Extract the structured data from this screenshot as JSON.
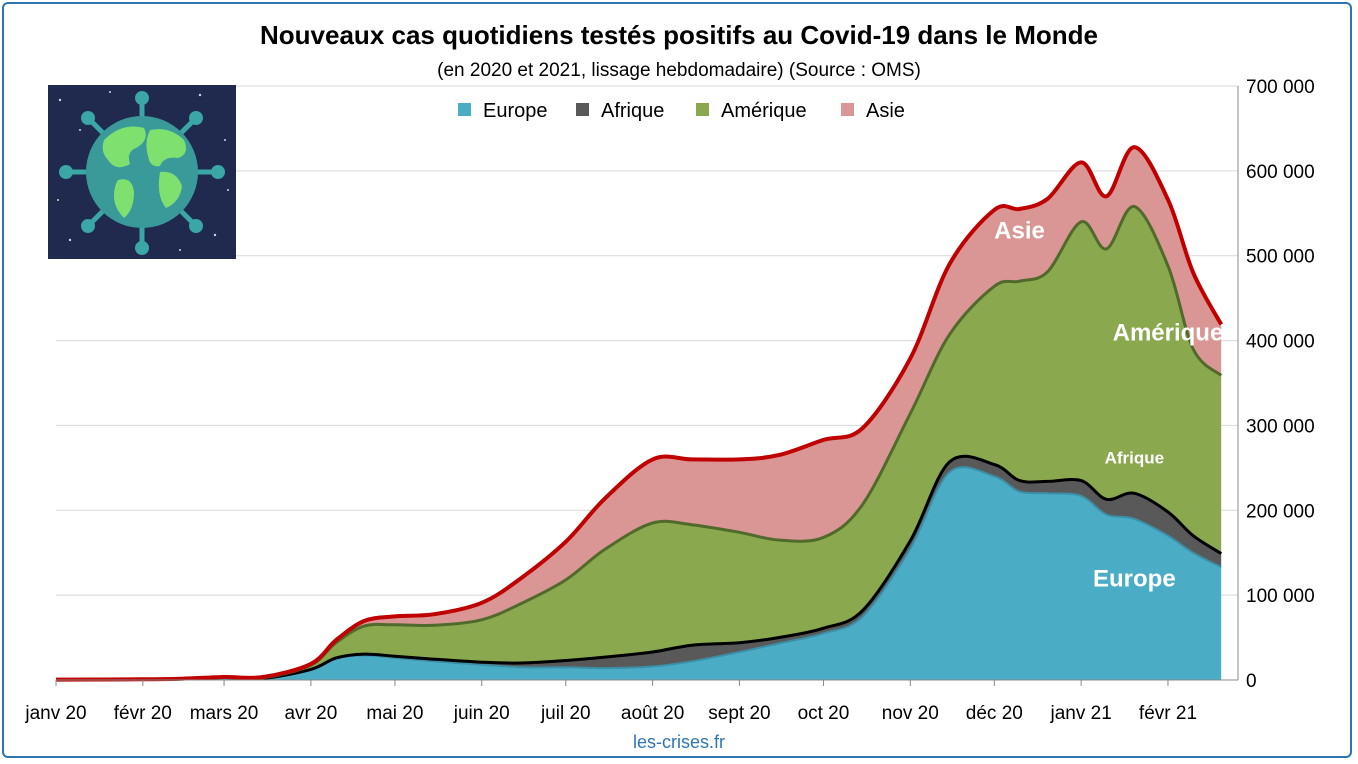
{
  "colors": {
    "europe": "#4bacc6",
    "afrique": "#595959",
    "amerique": "#8aa84e",
    "asie": "#d99694",
    "total_line": "#c00000",
    "frame": "#2e75b6",
    "grid": "#d9d9d9"
  },
  "icon": "earth-virus-icon",
  "source": "les-crises.fr",
  "chart_data": {
    "type": "area",
    "stacked": true,
    "title": "Nouveaux cas quotidiens testés positifs au Covid-19 dans le Monde",
    "subtitle": "(en 2020 et 2021, lissage hebdomadaire) (Source : OMS)",
    "ylim": [
      0,
      700000
    ],
    "y_ticks": [
      0,
      100000,
      200000,
      300000,
      400000,
      500000,
      600000,
      700000
    ],
    "y_tick_labels": [
      "0",
      "100 000",
      "200 000",
      "300 000",
      "400 000",
      "500 000",
      "600 000",
      "700 000"
    ],
    "y_axis_side": "right",
    "x_tick_labels": [
      "janv 20",
      "févr 20",
      "mars 20",
      "avr 20",
      "mai 20",
      "juin 20",
      "juil 20",
      "août 20",
      "sept 20",
      "oct 20",
      "nov 20",
      "déc 20",
      "janv 21",
      "févr 21"
    ],
    "legend_position": "top",
    "grid": true,
    "x": [
      "2020-01-01",
      "2020-02-01",
      "2020-02-15",
      "2020-03-01",
      "2020-03-15",
      "2020-04-01",
      "2020-04-10",
      "2020-04-20",
      "2020-05-01",
      "2020-05-15",
      "2020-06-01",
      "2020-06-15",
      "2020-07-01",
      "2020-07-15",
      "2020-08-01",
      "2020-08-15",
      "2020-09-01",
      "2020-09-15",
      "2020-10-01",
      "2020-10-15",
      "2020-11-01",
      "2020-11-15",
      "2020-12-01",
      "2020-12-10",
      "2020-12-20",
      "2021-01-01",
      "2021-01-10",
      "2021-01-20",
      "2021-02-01",
      "2021-02-10",
      "2021-02-20"
    ],
    "series": [
      {
        "name": "Europe",
        "key": "europe",
        "values": [
          500,
          800,
          1500,
          3000,
          2000,
          12000,
          25000,
          29000,
          26000,
          22000,
          18000,
          15000,
          15000,
          14000,
          16000,
          22000,
          33000,
          43000,
          55000,
          75000,
          155000,
          245000,
          240000,
          222000,
          220000,
          217000,
          195000,
          190000,
          170000,
          150000,
          133000
        ]
      },
      {
        "name": "Afrique",
        "key": "afrique",
        "values": [
          0,
          0,
          0,
          0,
          0,
          500,
          1000,
          1500,
          2000,
          2500,
          3000,
          5000,
          8000,
          13000,
          17000,
          19000,
          11000,
          7000,
          6000,
          7000,
          9000,
          12000,
          14000,
          13000,
          14000,
          18000,
          18000,
          30000,
          28000,
          20000,
          16000
        ]
      },
      {
        "name": "Amérique",
        "key": "amerique",
        "values": [
          0,
          0,
          0,
          0,
          500,
          5000,
          18000,
          33000,
          37000,
          40000,
          50000,
          70000,
          95000,
          127000,
          152000,
          142000,
          130000,
          115000,
          107000,
          125000,
          150000,
          150000,
          210000,
          235000,
          247000,
          305000,
          295000,
          338000,
          290000,
          220000,
          210000
        ]
      },
      {
        "name": "Asie",
        "key": "asie",
        "values": [
          0,
          0,
          0,
          500,
          1000,
          1500,
          3000,
          6000,
          10000,
          13000,
          20000,
          30000,
          45000,
          60000,
          75000,
          77000,
          86000,
          100000,
          115000,
          90000,
          65000,
          83000,
          90000,
          85000,
          86000,
          70000,
          62000,
          70000,
          78000,
          90000,
          60000
        ]
      }
    ],
    "annotations": [
      {
        "text": "Asie",
        "key": "asie",
        "x": "2020-12-10",
        "y": 520000
      },
      {
        "text": "Amérique",
        "key": "amerique",
        "x": "2021-02-01",
        "y": 400000
      },
      {
        "text": "Afrique",
        "key": "afrique",
        "x": "2021-01-20",
        "y": 255000
      },
      {
        "text": "Europe",
        "key": "europe",
        "x": "2021-01-20",
        "y": 110000
      }
    ]
  }
}
